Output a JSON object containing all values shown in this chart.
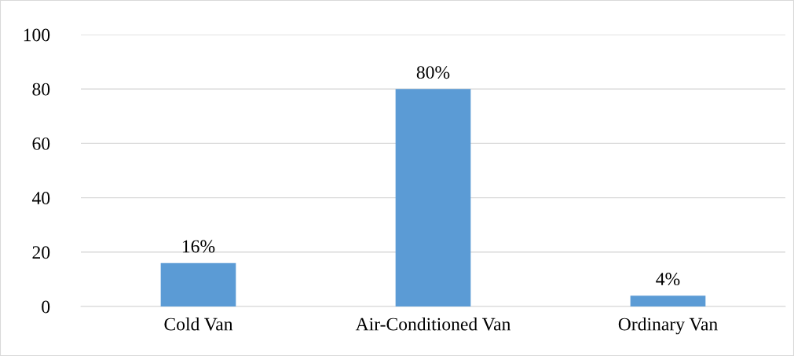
{
  "chart_data": {
    "type": "bar",
    "categories": [
      "Cold Van",
      "Air-Conditioned Van",
      "Ordinary Van"
    ],
    "values": [
      16,
      80,
      4
    ],
    "value_labels": [
      "16%",
      "80%",
      "4%"
    ],
    "color": "#5b9bd5",
    "ylim": [
      0,
      100
    ],
    "yticks": [
      0,
      20,
      40,
      60,
      80,
      100
    ],
    "grid": "y"
  }
}
